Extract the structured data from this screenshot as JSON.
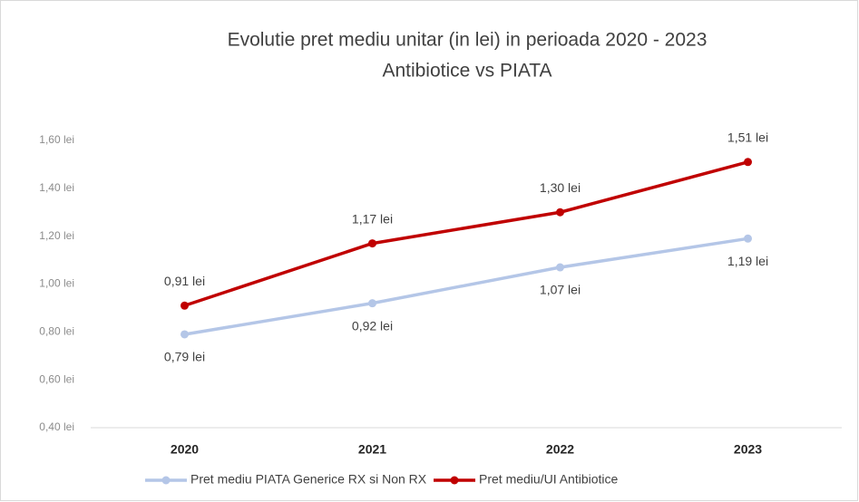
{
  "chart_data": {
    "type": "line",
    "title": "Evolutie pret mediu unitar (in lei) in perioada 2020 - 2023",
    "subtitle": "Antibiotice vs PIATA",
    "categories": [
      "2020",
      "2021",
      "2022",
      "2023"
    ],
    "series": [
      {
        "name": "Pret mediu PIATA Generice RX si Non RX",
        "color": "#b4c6e7",
        "values": [
          0.79,
          0.92,
          1.07,
          1.19
        ],
        "value_labels": [
          "0,79 lei",
          "0,92 lei",
          "1,07 lei",
          "1,19 lei"
        ],
        "label_position": "below"
      },
      {
        "name": "Pret mediu/UI Antibiotice",
        "color": "#c00000",
        "values": [
          0.91,
          1.17,
          1.3,
          1.51
        ],
        "value_labels": [
          "0,91 lei",
          "1,17 lei",
          "1,30 lei",
          "1,51 lei"
        ],
        "label_position": "above"
      }
    ],
    "ylim": [
      0.4,
      1.6
    ],
    "yticks": [
      {
        "value": 0.4,
        "label": "0,40 lei"
      },
      {
        "value": 0.6,
        "label": "0,60 lei"
      },
      {
        "value": 0.8,
        "label": "0,80 lei"
      },
      {
        "value": 1.0,
        "label": "1,00 lei"
      },
      {
        "value": 1.2,
        "label": "1,20 lei"
      },
      {
        "value": 1.4,
        "label": "1,40 lei"
      },
      {
        "value": 1.6,
        "label": "1,60 lei"
      }
    ],
    "grid": false,
    "legend": "bottom"
  }
}
